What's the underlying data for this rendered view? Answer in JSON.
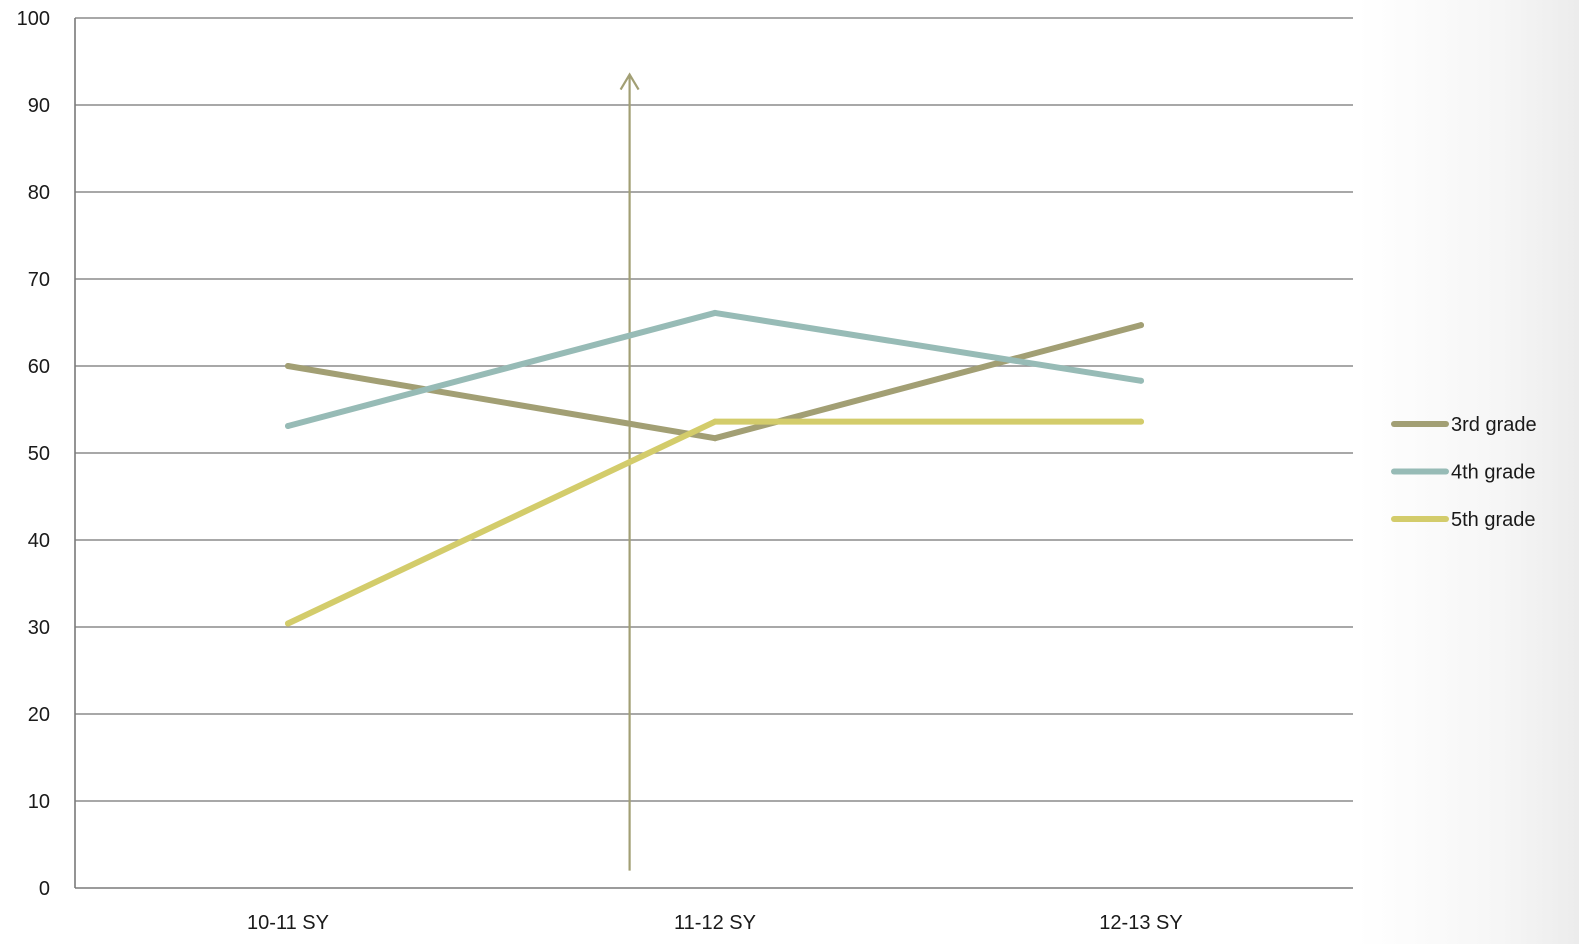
{
  "chart_data": {
    "type": "line",
    "title": "",
    "xlabel": "",
    "ylabel": "",
    "categories": [
      "10-11  SY",
      "11-12 SY",
      "12-13 SY"
    ],
    "ylim": [
      0,
      100
    ],
    "yticks": [
      "0",
      "10",
      "20",
      "30",
      "40",
      "50",
      "60",
      "70",
      "80",
      "90",
      "100"
    ],
    "grid": true,
    "legend_position": "right",
    "series": [
      {
        "name": "3rd grade",
        "values": [
          60,
          51.7,
          64.7
        ],
        "color": "#a29f74"
      },
      {
        "name": "4th grade",
        "values": [
          53.1,
          66.1,
          58.3
        ],
        "color": "#97bbb6"
      },
      {
        "name": "5th grade",
        "values": [
          30.4,
          53.6,
          53.6
        ],
        "color": "#d3cc6b"
      }
    ],
    "annotation": {
      "type": "vertical-arrow",
      "x_between": [
        "10-11  SY",
        "11-12 SY"
      ],
      "x_fraction": 0.8,
      "y_from": 2,
      "y_to": 93.5,
      "color": "#a29f74"
    }
  }
}
